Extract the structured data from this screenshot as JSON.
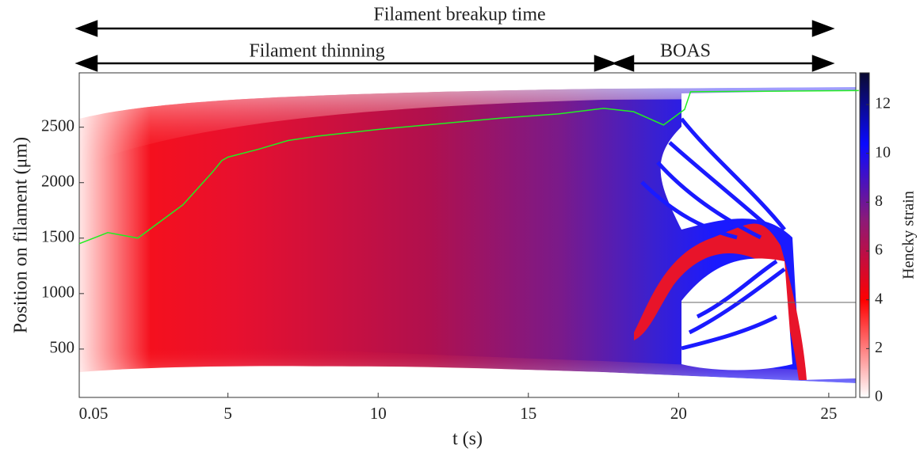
{
  "chart_data": {
    "type": "line",
    "annotations": [
      "Filament breakup time",
      "Filament thinning",
      "BOAS"
    ],
    "x_label": "t (s)",
    "y_label": "Position on filament (μm)",
    "x": [
      0.05,
      1,
      2,
      2.5,
      3,
      3.5,
      4,
      4.5,
      4.8,
      5,
      6,
      7,
      8,
      10,
      12,
      14,
      16,
      17.5,
      18.5,
      19.5,
      20.2,
      20.4,
      26
    ],
    "values": [
      1450,
      1550,
      1500,
      1600,
      1700,
      1800,
      1950,
      2100,
      2200,
      2230,
      2300,
      2380,
      2420,
      2480,
      2530,
      2580,
      2620,
      2670,
      2640,
      2520,
      2660,
      2820,
      2830
    ],
    "color": "#22ee22",
    "xlim": [
      0.05,
      25.9
    ],
    "xticks": [
      0.05,
      5,
      10,
      15,
      20,
      25
    ],
    "ylim": [
      64,
      2990
    ],
    "yticks": [
      500,
      1000,
      1500,
      2000,
      2500
    ],
    "colorbar": {
      "label": "Hencky strain",
      "lim": [
        0,
        13.3
      ],
      "ticks": [
        0,
        2,
        4,
        6,
        8,
        10,
        12
      ]
    }
  }
}
